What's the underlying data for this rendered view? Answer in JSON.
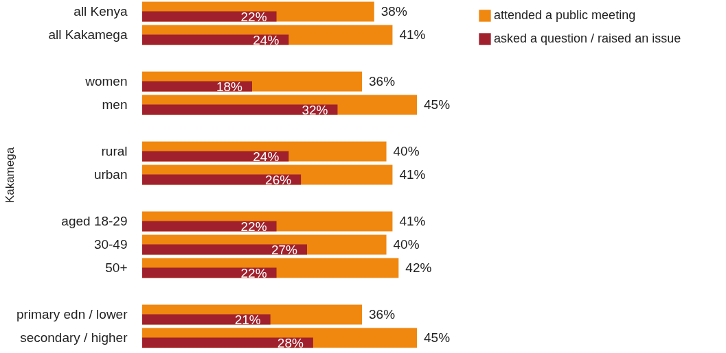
{
  "chart_data": {
    "type": "bar",
    "orientation": "horizontal",
    "ylabel": "Kakamega",
    "legend": "top right",
    "categories": [
      "all Kenya",
      "all Kakamega",
      null,
      "women",
      "men",
      null,
      "rural",
      "urban",
      null,
      "aged 18-29",
      "30-49",
      "50+",
      null,
      "primary edn / lower",
      "secondary / higher"
    ],
    "series": [
      {
        "name": "attended a public meeting",
        "color": "#f0870f",
        "values": [
          38,
          41,
          null,
          36,
          45,
          null,
          40,
          41,
          null,
          41,
          40,
          42,
          null,
          36,
          45
        ],
        "value_labels": [
          "38%",
          "41%",
          null,
          "36%",
          "45%",
          null,
          "40%",
          "41%",
          null,
          "41%",
          "40%",
          "42%",
          null,
          "36%",
          "45%"
        ]
      },
      {
        "name": "asked a question / raised an issue",
        "color": "#a0212d",
        "values": [
          22,
          24,
          null,
          18,
          32,
          null,
          24,
          26,
          null,
          22,
          27,
          22,
          null,
          21,
          28
        ],
        "value_labels": [
          "22%",
          "24%",
          null,
          "18%",
          "32%",
          null,
          "24%",
          "26%",
          null,
          "22%",
          "27%",
          "22%",
          null,
          "21%",
          "28%"
        ]
      }
    ]
  }
}
